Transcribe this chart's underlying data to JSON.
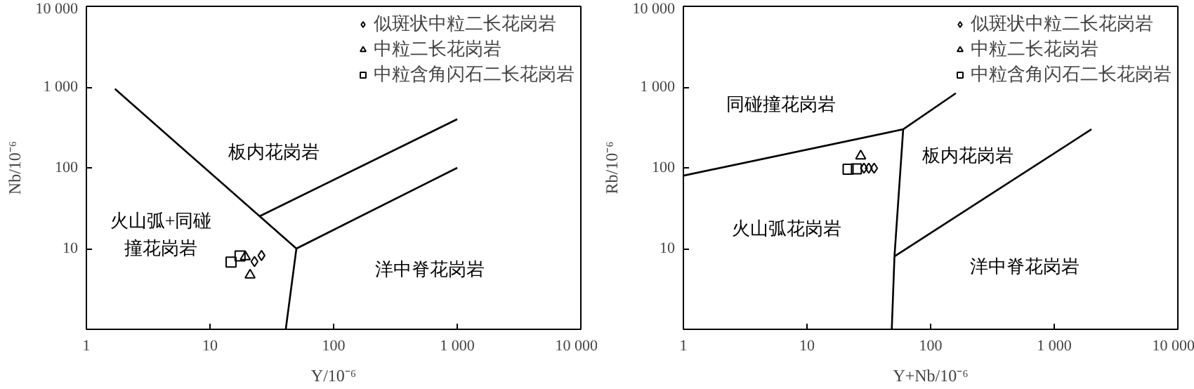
{
  "chart_data": [
    {
      "type": "scatter",
      "xlabel": "Y/10⁻⁶",
      "ylabel": "Nb/10⁻⁶",
      "log": "xy",
      "grid": false,
      "legend": "top right",
      "xlim": [
        1,
        10000
      ],
      "ylim": [
        1,
        10000
      ],
      "xticks": [
        1,
        10,
        100,
        1000,
        10000
      ],
      "yticks": [
        10,
        100,
        1000,
        10000
      ],
      "series": [
        {
          "name": "似斑状中粒二长花岗岩",
          "marker": "diamond",
          "color": "#000000",
          "x": [
            22.9,
            26.1
          ],
          "values": [
            6.9,
            8.2
          ]
        },
        {
          "name": "中粒二长花岗岩",
          "marker": "triangle",
          "color": "#000000",
          "x": [
            19.3,
            21.1
          ],
          "values": [
            7.9,
            4.7
          ]
        },
        {
          "name": "中粒含角闪石二长花岗岩",
          "marker": "square",
          "color": "#000000",
          "x": [
            14.8,
            17.5
          ],
          "values": [
            6.8,
            8.1
          ]
        },
        {
          "type": "line",
          "marker": "none",
          "color": "#000000",
          "x": [
            1.7,
            50
          ],
          "values": [
            950,
            10
          ]
        },
        {
          "type": "line",
          "marker": "none",
          "color": "#000000",
          "x": [
            50,
            41
          ],
          "values": [
            10,
            1
          ]
        },
        {
          "type": "line",
          "marker": "none",
          "color": "#000000",
          "x": [
            50,
            1000
          ],
          "values": [
            10,
            100
          ]
        },
        {
          "type": "line",
          "marker": "none",
          "color": "#000000",
          "x": [
            25,
            1000
          ],
          "values": [
            25,
            400
          ]
        }
      ],
      "annotations": [
        "板内花岗岩",
        "火山弧+同碰撞花岗岩",
        "洋中脊花岗岩"
      ]
    },
    {
      "type": "scatter",
      "xlabel": "Y+Nb/10⁻⁶",
      "ylabel": "Rb/10⁻⁶",
      "log": "xy",
      "grid": false,
      "legend": "top right",
      "xlim": [
        1,
        10000
      ],
      "ylim": [
        1,
        10000
      ],
      "xticks": [
        1,
        10,
        100,
        1000,
        10000
      ],
      "yticks": [
        10,
        100,
        1000,
        10000
      ],
      "series": [
        {
          "name": "似斑状中粒二长花岗岩",
          "marker": "diamond",
          "color": "#000000",
          "x": [
            28.9,
            31.6,
            34.9
          ],
          "values": [
            99,
            99,
            99
          ]
        },
        {
          "name": "中粒二长花岗岩",
          "marker": "triangle",
          "color": "#000000",
          "x": [
            27.2
          ],
          "values": [
            140
          ]
        },
        {
          "name": "中粒含角闪石二长花岗岩",
          "marker": "square",
          "color": "#000000",
          "x": [
            21.5,
            25.1
          ],
          "values": [
            96,
            97
          ]
        },
        {
          "type": "line",
          "marker": "none",
          "color": "#000000",
          "x": [
            1,
            60,
            160
          ],
          "values": [
            80,
            300,
            840
          ]
        },
        {
          "type": "line",
          "marker": "none",
          "color": "#000000",
          "x": [
            60,
            51,
            48.5
          ],
          "values": [
            300,
            8,
            1
          ]
        },
        {
          "type": "line",
          "marker": "none",
          "color": "#000000",
          "x": [
            51,
            2000
          ],
          "values": [
            8,
            300
          ]
        }
      ],
      "annotations": [
        "同碰撞花岗岩",
        "板内花岗岩",
        "火山弧花岗岩",
        "洋中脊花岗岩"
      ]
    }
  ]
}
